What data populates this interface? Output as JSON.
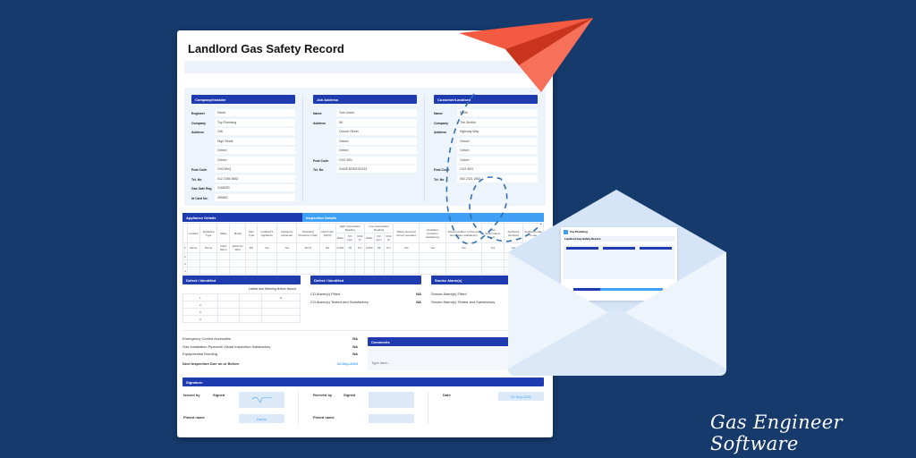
{
  "document": {
    "title": "Landlord Gas Safety Record"
  },
  "company": {
    "header": "Company/Installer",
    "rows": [
      [
        "Engineer",
        "Demo"
      ],
      [
        "Company",
        "Top Plumbing"
      ],
      [
        "Address",
        "246"
      ],
      [
        "",
        "High Street"
      ],
      [
        "",
        "Oxford"
      ],
      [
        "",
        "Oxford"
      ],
      [
        "Post Code",
        "OX3 8HQ"
      ],
      [
        "Tel. No",
        "012 2356 5662"
      ],
      [
        "Gas Safe Reg",
        "0158330"
      ],
      [
        "Id Card No.",
        "455562"
      ]
    ]
  },
  "job": {
    "header": "Job Address",
    "rows": [
      [
        "Name",
        "Tom Jones"
      ],
      [
        "Address",
        "56"
      ],
      [
        "",
        "Church Street"
      ],
      [
        "",
        "Oxford"
      ],
      [
        "",
        "Oxford"
      ],
      [
        "Post Code",
        "OX3 4SN"
      ],
      [
        "Tel. No",
        "01628 82993 82233"
      ]
    ]
  },
  "customer": {
    "header": "Customer/Landlord",
    "rows": [
      [
        "Name",
        "Smith"
      ],
      [
        "Company",
        "The Smiths"
      ],
      [
        "Address",
        "Highway Way"
      ],
      [
        "",
        "Oxford"
      ],
      [
        "",
        "Oxford"
      ],
      [
        "",
        "Oxford"
      ],
      [
        "Post Code",
        "OX3 4DH"
      ],
      [
        "Tel. No",
        "052 2321 2652"
      ]
    ]
  },
  "appliance": {
    "header_left": "Appliance Details",
    "header_right": "Inspection Details",
    "columns": [
      "",
      "Location",
      "Appliance Type",
      "Make",
      "Model",
      "Flue Type",
      "Landlord's Appliance",
      "Appliance Inspected",
      "Operating Pressure (mbar)",
      "Heat Input (kW/h)",
      "Ratio",
      "CO ppm",
      "CO2 %",
      "Ratio",
      "CO ppm",
      "CO2 %",
      "Safety device(s) correct operation",
      "Ventilation provision satisfactory",
      "Visual condition of flue and termination satisfactory",
      "Flue performance test",
      "Appliance Serviced",
      "Appliance safe to use"
    ],
    "group_high": "High Combustion Reading",
    "group_low": "Low Combustion Reading",
    "rows": [
      [
        "1",
        "Demo",
        "Demo",
        "Glow Worm",
        "Flexicom 30cx",
        "RS",
        "Yes",
        "Yes",
        "20.17",
        "NA",
        "0.004",
        "09",
        "8.3",
        "0.004",
        "09",
        "8.3",
        "Yes",
        "Yes",
        "Yes",
        "Yes",
        "Yes",
        "Yes"
      ],
      [
        "2"
      ],
      [
        "3"
      ],
      [
        "4"
      ]
    ]
  },
  "defects": {
    "header": "Defect / Identified",
    "notice_label": "Labels and Warning Notice Issued",
    "rows": [
      [
        "1",
        "",
        "",
        "N"
      ],
      [
        "2",
        "",
        "",
        ""
      ],
      [
        "3",
        "",
        "",
        ""
      ],
      [
        "4",
        "",
        "",
        ""
      ]
    ]
  },
  "co_alarms": {
    "header": "Defect / Identified",
    "items": [
      [
        "CO Alarm(s) Fitted",
        "NA"
      ],
      [
        "CO Alarm(s) Tested and Sarisfactory",
        "NA"
      ]
    ]
  },
  "smoke_alarms": {
    "header": "Smoke Alarm(s)",
    "items": [
      [
        "Smoke Alarm(s) Fitted",
        "NA"
      ],
      [
        "Smoke Alarm(s) Tested and Sarisfactory",
        "NA"
      ]
    ]
  },
  "checks": {
    "items": [
      [
        "Emergency Control Accessible",
        "NA"
      ],
      [
        "Gas Installation Pipework Visual Inspection Satisfactory",
        "NA"
      ],
      [
        "Equipotential Bonding",
        "NA"
      ]
    ],
    "next_label": "Next Inspection Due on or Before",
    "next_date": "22-Sep-2023"
  },
  "comments": {
    "header": "Comments",
    "placeholder": "Type here..."
  },
  "signature": {
    "header": "Signature",
    "issued_by": "Issued by",
    "signed": "Signed",
    "received_by": "Reeived by",
    "signed2": "Signed",
    "date_label": "Date",
    "date": "23-Sep-2022",
    "printed_name": "Pinted name",
    "printed_value": "Demo",
    "printed_name2": "Pinted name"
  },
  "envelope_letter": {
    "company": "Top Plumbing",
    "title": "Landlord Gas Safety Record"
  },
  "brand": "Gas Engineer Software",
  "colors": {
    "background": "#163a6c",
    "header_dark": "#1f3bb0",
    "header_light": "#3fa0f5",
    "plane": "#f04e37"
  }
}
